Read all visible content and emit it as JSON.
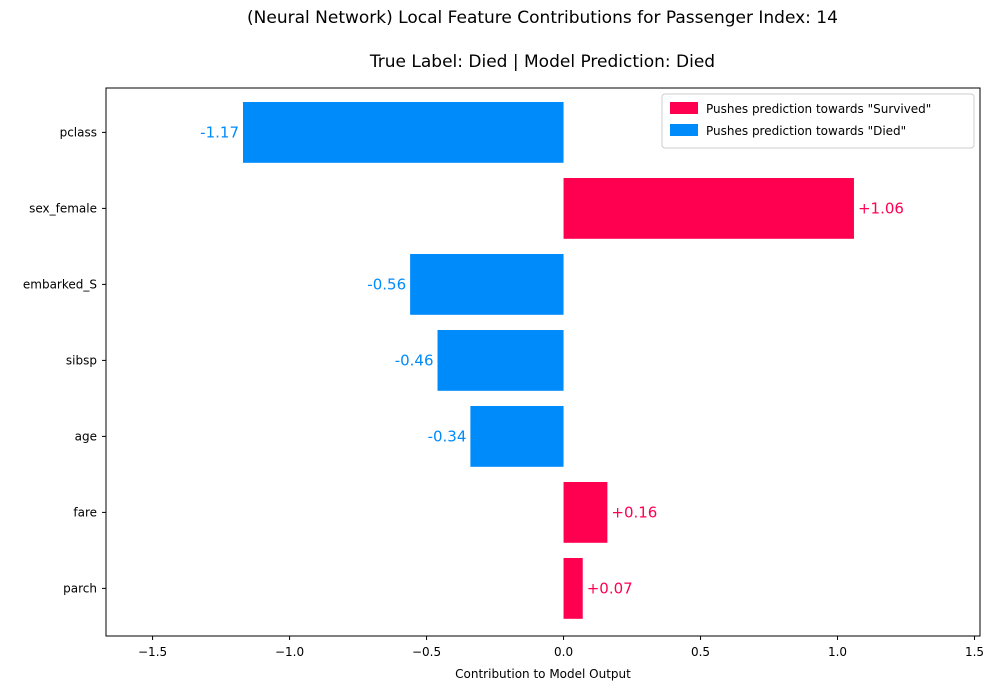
{
  "chart_data": {
    "type": "bar",
    "orientation": "horizontal",
    "title": "(Neural Network) Local Feature Contributions for Passenger Index: 14",
    "subtitle": "True Label: Died | Model Prediction: Died",
    "xlabel": "Contribution to Model Output",
    "ylabel": "",
    "xlim": [
      -1.67,
      1.52
    ],
    "xticks": [
      -1.5,
      -1.0,
      -0.5,
      0.0,
      0.5,
      1.0,
      1.5
    ],
    "xtick_labels": [
      "−1.5",
      "−1.0",
      "−0.5",
      "0.0",
      "0.5",
      "1.0",
      "1.5"
    ],
    "grid": false,
    "legend_position": "top-right",
    "categories": [
      "pclass",
      "sex_female",
      "embarked_S",
      "sibsp",
      "age",
      "fare",
      "parch"
    ],
    "values": [
      -1.17,
      1.06,
      -0.56,
      -0.46,
      -0.34,
      0.16,
      0.07
    ],
    "data_labels": [
      "-1.17",
      "+1.06",
      "-0.56",
      "-0.46",
      "-0.34",
      "+0.16",
      "+0.07"
    ],
    "colors": {
      "positive": "#ff0051",
      "negative": "#008bfb"
    },
    "legend": [
      {
        "label": "Pushes prediction towards \"Survived\"",
        "color": "#ff0051"
      },
      {
        "label": "Pushes prediction towards \"Died\"",
        "color": "#008bfb"
      }
    ]
  }
}
